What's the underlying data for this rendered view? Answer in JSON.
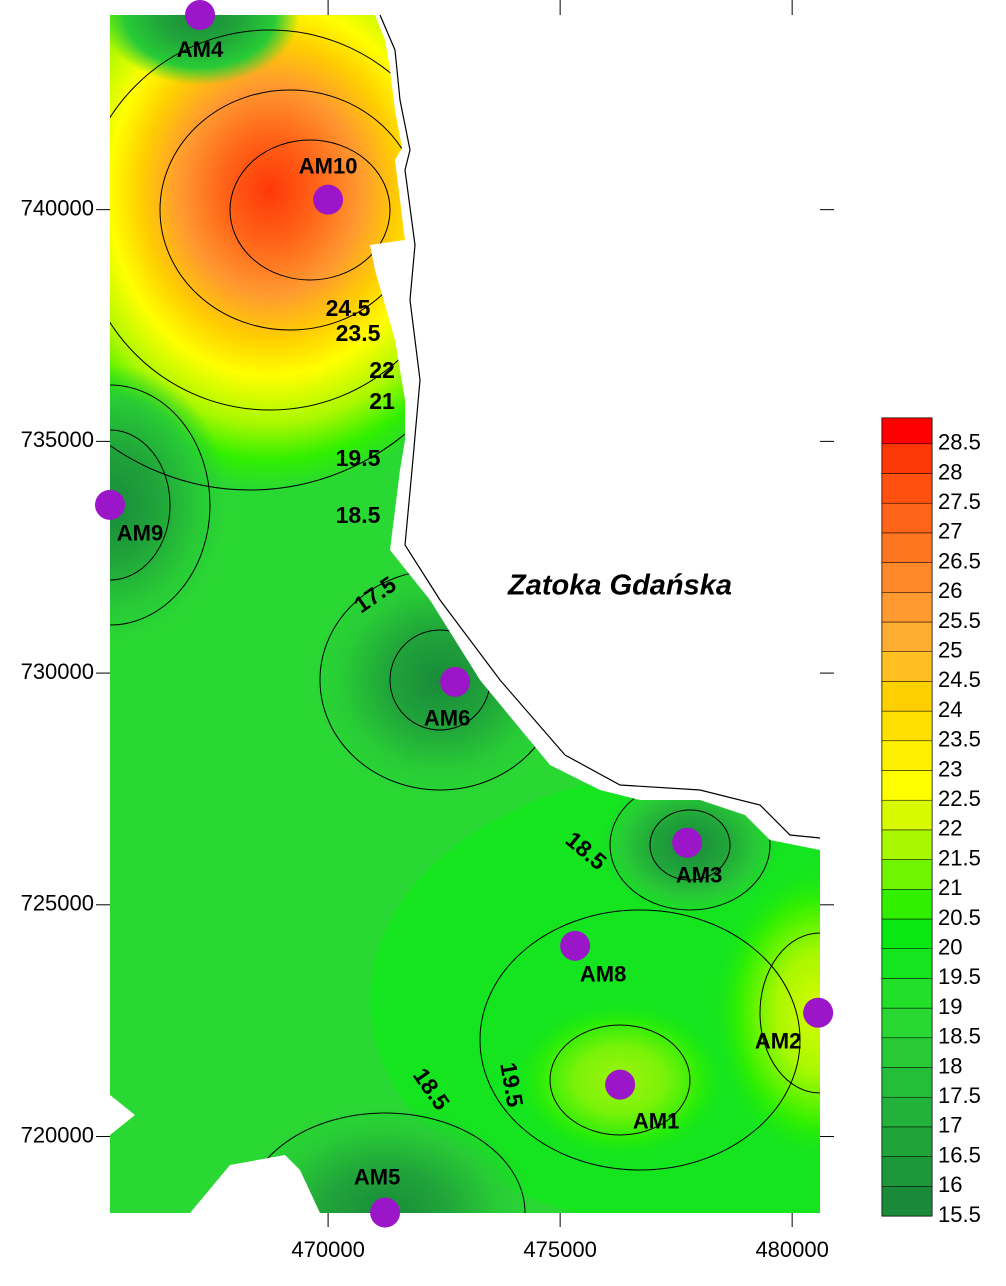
{
  "map": {
    "title": "Zatoka Gdańska",
    "xlim": [
      465300,
      480600
    ],
    "ylim": [
      718350,
      744200
    ],
    "xticks": [
      470000,
      475000,
      480000
    ],
    "yticks": [
      720000,
      725000,
      730000,
      735000,
      740000
    ],
    "stations": [
      {
        "label": "AM4",
        "x": 467240,
        "y": 744200
      },
      {
        "label": "AM10",
        "x": 470000,
        "y": 740215
      },
      {
        "label": "AM9",
        "x": 465300,
        "y": 733630
      },
      {
        "label": "AM6",
        "x": 472737,
        "y": 729810
      },
      {
        "label": "AM3",
        "x": 477737,
        "y": 726340
      },
      {
        "label": "AM8",
        "x": 475323,
        "y": 724115
      },
      {
        "label": "AM2",
        "x": 480560,
        "y": 722670
      },
      {
        "label": "AM1",
        "x": 476293,
        "y": 721120
      },
      {
        "label": "AM5",
        "x": 471228,
        "y": 718360
      }
    ],
    "contour_labels": [
      24.5,
      23.5,
      22,
      21,
      19.5,
      18.5,
      17.5,
      18.5,
      18.5,
      19.5
    ]
  },
  "legend": {
    "levels": [
      15.5,
      16,
      16.5,
      17,
      17.5,
      18,
      18.5,
      19,
      19.5,
      20,
      20.5,
      21,
      21.5,
      22,
      22.5,
      23,
      23.5,
      24,
      24.5,
      25,
      25.5,
      26,
      26.5,
      27,
      27.5,
      28,
      28.5
    ],
    "colors": [
      "#1a8a3a",
      "#1d973a",
      "#20a43a",
      "#22b13a",
      "#25be38",
      "#28cb36",
      "#2ad833",
      "#22e02a",
      "#14e51e",
      "#0ae812",
      "#30f000",
      "#70f500",
      "#a8f800",
      "#d8fa00",
      "#ffff00",
      "#fff000",
      "#ffe000",
      "#ffd000",
      "#ffbf20",
      "#ffad30",
      "#ff9a30",
      "#ff8828",
      "#ff7620",
      "#ff6418",
      "#ff5010",
      "#ff3808",
      "#ff0000"
    ]
  }
}
